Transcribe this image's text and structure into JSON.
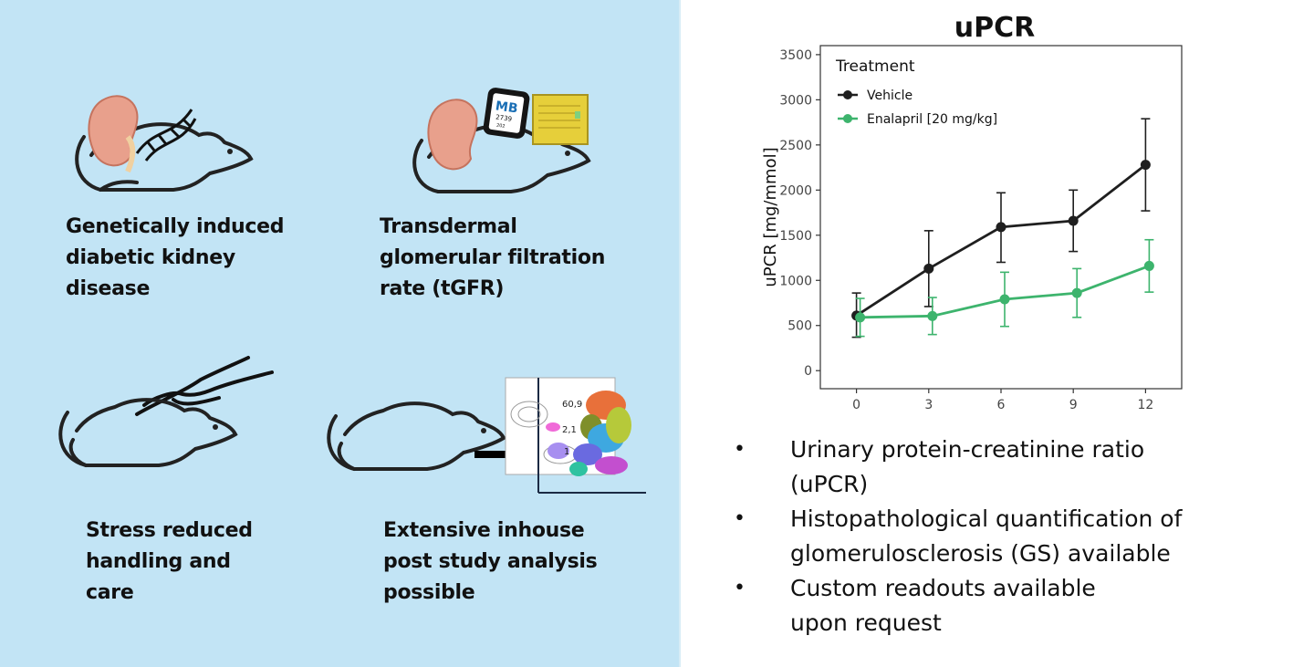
{
  "features": [
    {
      "caption": "Genetically induced\ndiabetic kidney\ndisease"
    },
    {
      "caption": "Transdermal\nglomerular filtration\nrate (tGFR)"
    },
    {
      "caption": "Stress reduced\nhandling and\ncare"
    },
    {
      "caption": "Extensive inhouse\npost study analysis\npossible"
    }
  ],
  "device_label": {
    "brand": "MB",
    "line1": "2739",
    "line2": "202"
  },
  "flow_labels": [
    "60,9",
    "2,1",
    "1"
  ],
  "bullets": [
    "Urinary protein-creatinine ratio\n(uPCR)",
    "Histopathological quantification of\nglomerulosclerosis (GS) available",
    "Custom readouts available\nupon request"
  ],
  "bullet_symbol": "•",
  "colors": {
    "panel_bg": "#c2e4f5",
    "vehicle": "#1f1f1f",
    "enalapril": "#3db46d"
  },
  "chart_data": {
    "type": "line",
    "title": "uPCR",
    "xlabel": "",
    "ylabel": "uPCR [mg/mmol]",
    "x": [
      0,
      3,
      6,
      9,
      12
    ],
    "xlim": [
      -1.5,
      13.5
    ],
    "ylim": [
      -200,
      3600
    ],
    "yticks": [
      0,
      500,
      1000,
      1500,
      2000,
      2500,
      3000,
      3500
    ],
    "legend_title": "Treatment",
    "legend_position": "top-left",
    "grid": false,
    "series": [
      {
        "name": "Vehicle",
        "color": "#1f1f1f",
        "values": [
          610,
          1130,
          1590,
          1660,
          2280
        ],
        "lower": [
          370,
          710,
          1200,
          1320,
          1770
        ],
        "upper": [
          860,
          1550,
          1970,
          2000,
          2790
        ]
      },
      {
        "name": "Enalapril [20 mg/kg]",
        "color": "#3db46d",
        "values": [
          590,
          605,
          790,
          860,
          1160
        ],
        "lower": [
          380,
          400,
          490,
          590,
          870
        ],
        "upper": [
          800,
          810,
          1090,
          1130,
          1450
        ]
      }
    ]
  }
}
